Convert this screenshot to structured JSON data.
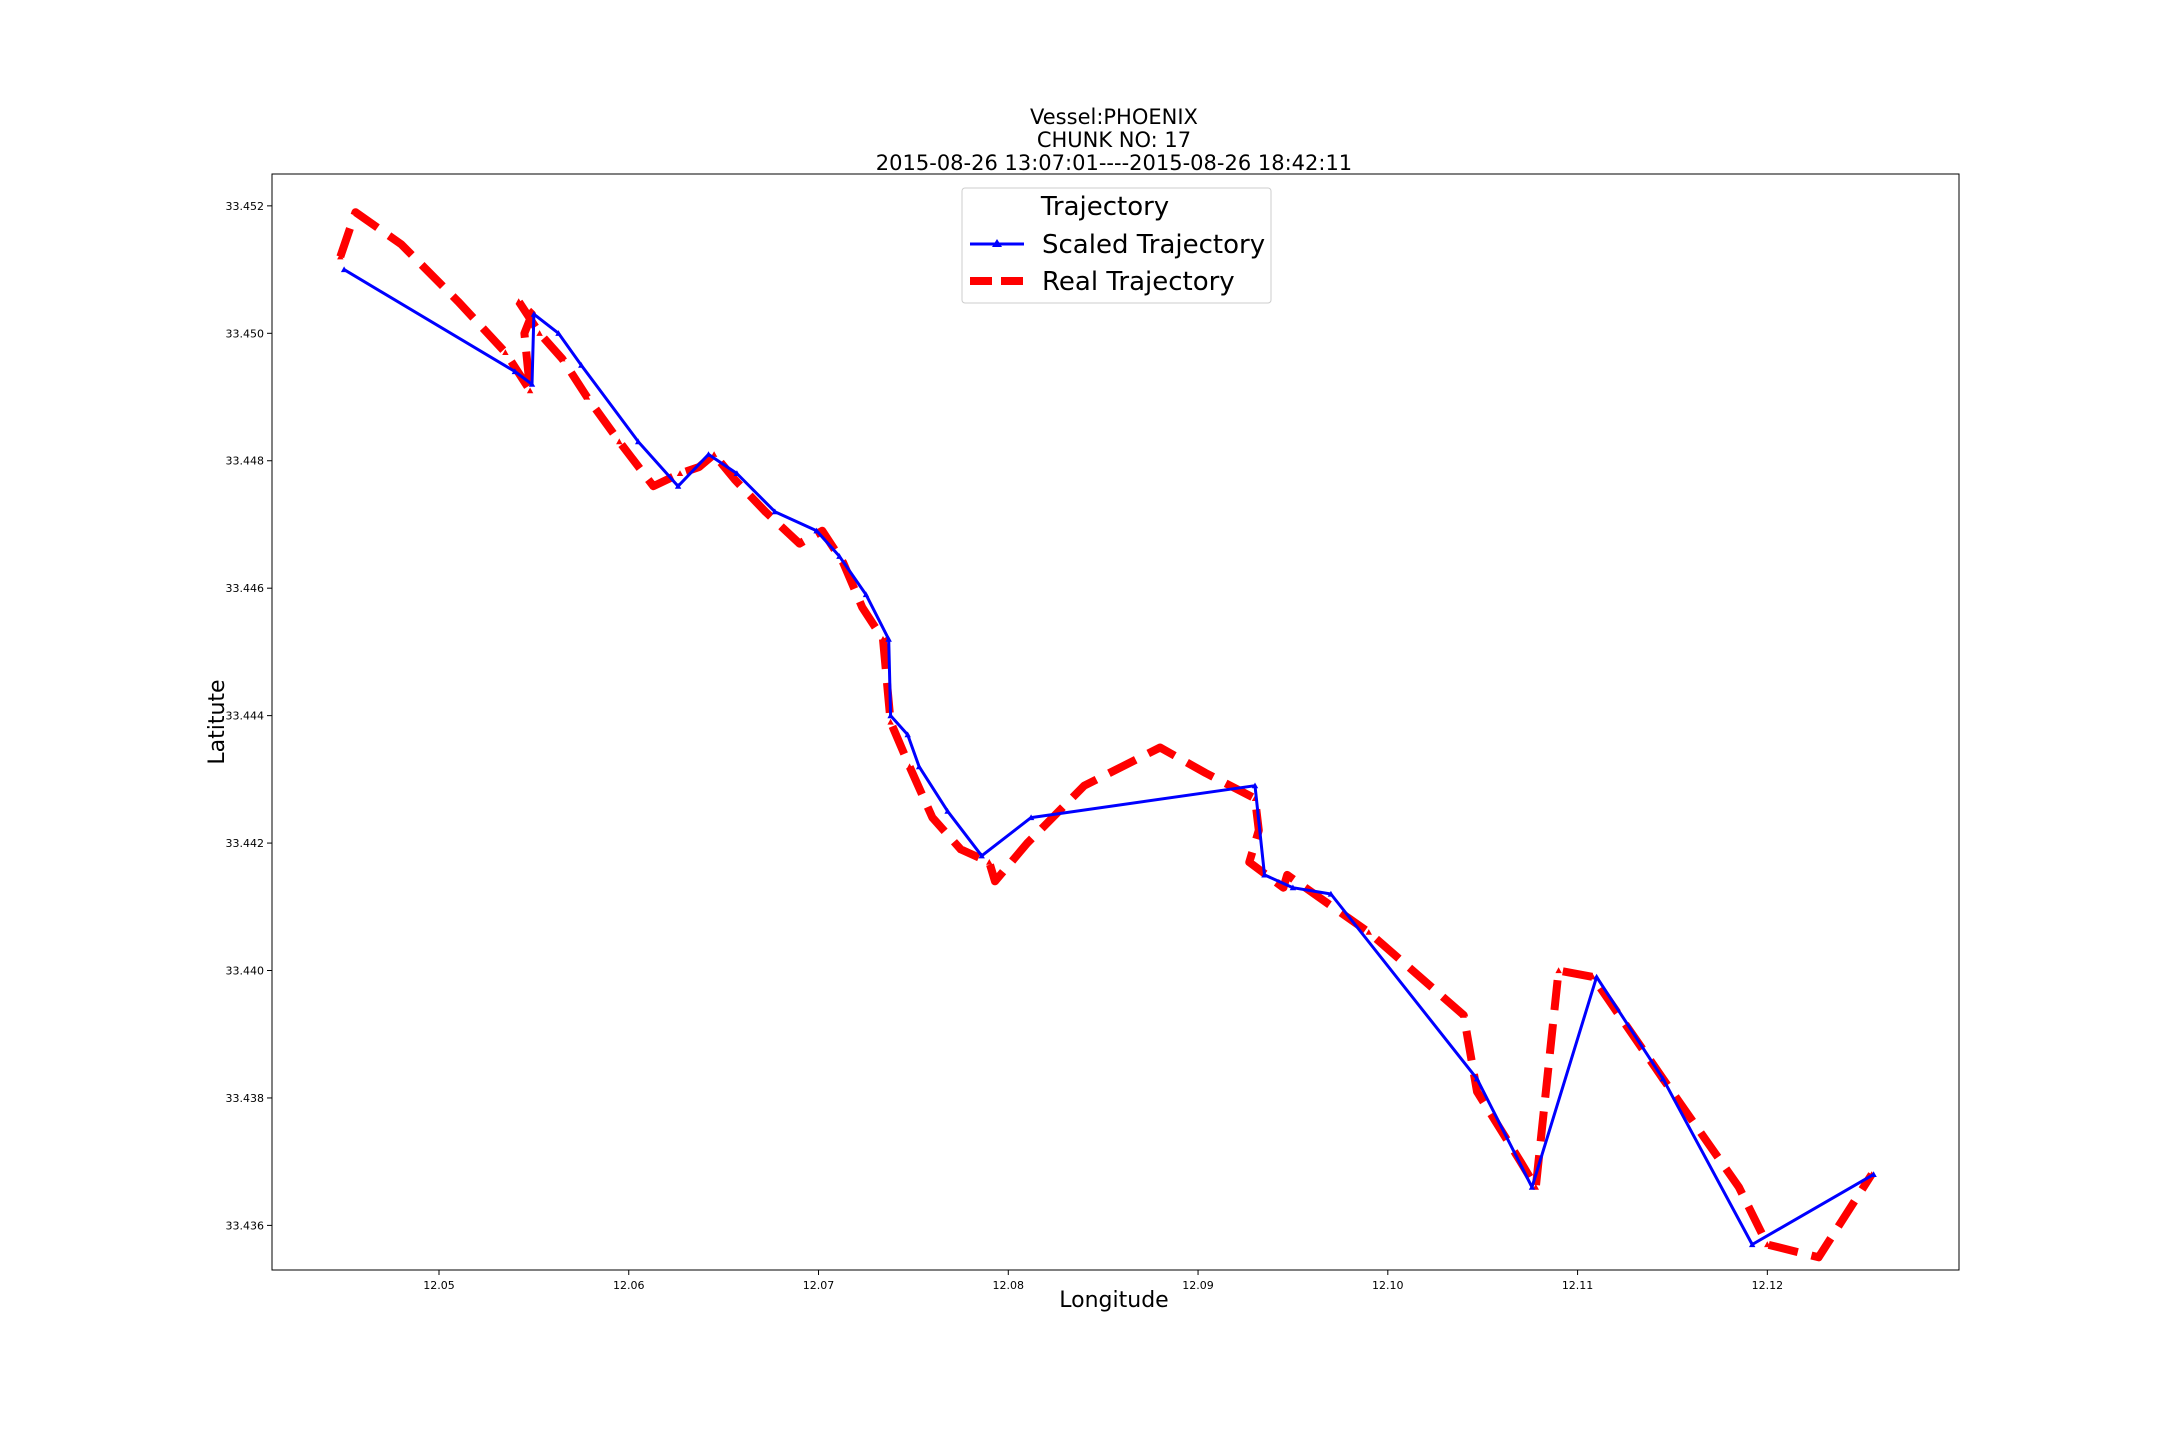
{
  "chart_data": {
    "type": "line",
    "title": [
      "Vessel:PHOENIX",
      "CHUNK NO: 17",
      "2015-08-26 13:07:01----2015-08-26 18:42:11"
    ],
    "xlabel": "Longitude",
    "ylabel": "Latitute",
    "xlim": [
      12.0412,
      12.1301
    ],
    "ylim": [
      33.4353,
      33.4525
    ],
    "xticks": [
      12.05,
      12.06,
      12.07,
      12.08,
      12.09,
      12.1,
      12.11,
      12.12
    ],
    "xtick_labels": [
      "12.05",
      "12.06",
      "12.07",
      "12.08",
      "12.09",
      "12.10",
      "12.11",
      "12.12"
    ],
    "yticks": [
      33.436,
      33.438,
      33.44,
      33.442,
      33.444,
      33.446,
      33.448,
      33.45,
      33.452
    ],
    "ytick_labels": [
      "33.436",
      "33.438",
      "33.440",
      "33.442",
      "33.444",
      "33.446",
      "33.448",
      "33.450",
      "33.452"
    ],
    "grid": false,
    "legend": {
      "title": "Trajectory",
      "placement": "upper center",
      "entries": [
        "Scaled Trajectory",
        "Real Trajectory"
      ]
    },
    "series": [
      {
        "name": "Scaled Trajectory",
        "color": "#0000ff",
        "style": "solid",
        "marker": "triangle",
        "x": [
          12.045,
          12.054,
          12.0549,
          12.055,
          12.0563,
          12.0575,
          12.0605,
          12.0626,
          12.0642,
          12.0657,
          12.0677,
          12.0699,
          12.0711,
          12.0725,
          12.0737,
          12.0738,
          12.0747,
          12.0753,
          12.0768,
          12.0786,
          12.0812,
          12.093,
          12.0935,
          12.095,
          12.097,
          12.1047,
          12.1076,
          12.111,
          12.1145,
          12.1192,
          12.1256
        ],
        "y": [
          33.451,
          33.4494,
          33.4492,
          33.4503,
          33.45,
          33.4495,
          33.4483,
          33.4476,
          33.4481,
          33.4478,
          33.4472,
          33.4469,
          33.4465,
          33.4459,
          33.4452,
          33.444,
          33.4437,
          33.4432,
          33.4425,
          33.4418,
          33.4424,
          33.4429,
          33.4415,
          33.4413,
          33.4412,
          33.4383,
          33.4366,
          33.4399,
          33.4383,
          33.4357,
          33.4368
        ]
      },
      {
        "name": "Real Trajectory",
        "color": "#ff0000",
        "style": "dashed",
        "marker": "triangle",
        "x": [
          12.0448,
          12.0456,
          12.048,
          12.051,
          12.0535,
          12.0548,
          12.0545,
          12.0549,
          12.0542,
          12.0553,
          12.0565,
          12.0578,
          12.0595,
          12.0613,
          12.0627,
          12.0637,
          12.0645,
          12.0656,
          12.0672,
          12.069,
          12.0702,
          12.0713,
          12.0723,
          12.0734,
          12.0738,
          12.0748,
          12.076,
          12.0775,
          12.079,
          12.0793,
          12.081,
          12.084,
          12.088,
          12.0904,
          12.093,
          12.0932,
          12.0927,
          12.0945,
          12.0947,
          12.099,
          12.104,
          12.1047,
          12.107,
          12.1078,
          12.109,
          12.1108,
          12.1145,
          12.1185,
          12.12,
          12.1227,
          12.1255
        ],
        "y": [
          33.4512,
          33.4519,
          33.4514,
          33.4505,
          33.4497,
          33.4491,
          33.45,
          33.4503,
          33.4505,
          33.45,
          33.4496,
          33.449,
          33.4483,
          33.4476,
          33.4478,
          33.4479,
          33.4481,
          33.4477,
          33.4472,
          33.4467,
          33.4469,
          33.4464,
          33.4457,
          33.4452,
          33.4439,
          33.4432,
          33.4424,
          33.4419,
          33.4417,
          33.4414,
          33.442,
          33.4429,
          33.4435,
          33.4431,
          33.4427,
          33.4422,
          33.4417,
          33.4413,
          33.4415,
          33.4406,
          33.4393,
          33.4381,
          33.437,
          33.4366,
          33.44,
          33.4399,
          33.4383,
          33.4366,
          33.4357,
          33.4355,
          33.4368
        ]
      }
    ]
  }
}
